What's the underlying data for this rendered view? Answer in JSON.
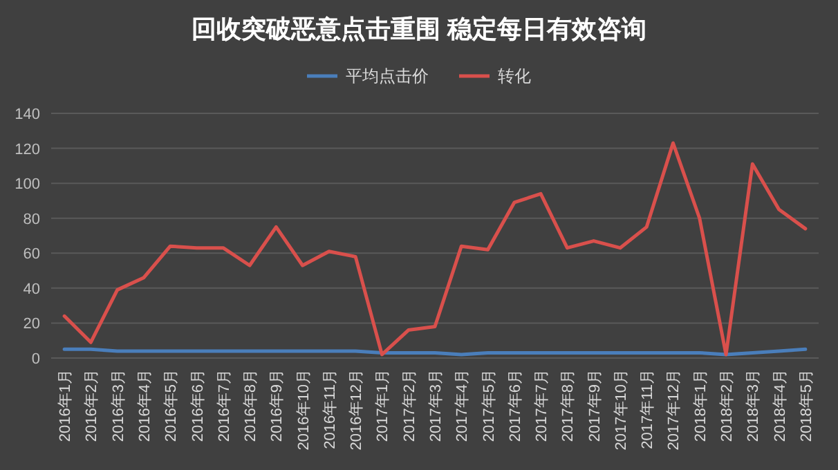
{
  "chart_data": {
    "type": "line",
    "title": "回收突破恶意点击重围 稳定每日有效咨询",
    "categories": [
      "2016年1月",
      "2016年2月",
      "2016年3月",
      "2016年4月",
      "2016年5月",
      "2016年6月",
      "2016年7月",
      "2016年8月",
      "2016年9月",
      "2016年10月",
      "2016年11月",
      "2016年12月",
      "2017年1月",
      "2017年2月",
      "2017年3月",
      "2017年4月",
      "2017年5月",
      "2017年6月",
      "2017年7月",
      "2017年8月",
      "2017年9月",
      "2017年10月",
      "2017年11月",
      "2017年12月",
      "2018年1月",
      "2018年2月",
      "2018年3月",
      "2018年4月",
      "2018年5月"
    ],
    "series": [
      {
        "name": "平均点击价",
        "color": "#4a7ebb",
        "values": [
          5,
          5,
          4,
          4,
          4,
          4,
          4,
          4,
          4,
          4,
          4,
          4,
          3,
          3,
          3,
          2,
          3,
          3,
          3,
          3,
          3,
          3,
          3,
          3,
          3,
          2,
          3,
          4,
          5
        ]
      },
      {
        "name": "转化",
        "color": "#d9504c",
        "values": [
          24,
          9,
          39,
          46,
          64,
          63,
          63,
          53,
          75,
          53,
          61,
          58,
          2,
          16,
          18,
          64,
          62,
          89,
          94,
          63,
          67,
          63,
          75,
          123,
          80,
          2,
          111,
          85,
          74
        ]
      }
    ],
    "ylim": [
      0,
      140
    ],
    "yticks": [
      0,
      20,
      40,
      60,
      80,
      100,
      120,
      140
    ],
    "grid": "y",
    "legend": "top",
    "marker": "none",
    "line_style": "solid"
  }
}
